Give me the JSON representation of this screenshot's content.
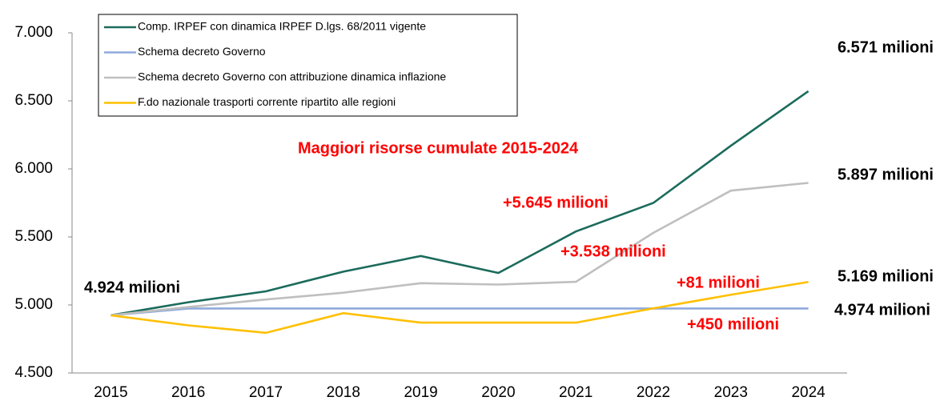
{
  "chart_data": {
    "type": "line",
    "categories": [
      "2015",
      "2016",
      "2017",
      "2018",
      "2019",
      "2020",
      "2021",
      "2022",
      "2023",
      "2024"
    ],
    "series": [
      {
        "name": "Comp. IRPEF con dinamica IRPEF D.lgs. 68/2011 vigente",
        "color": "#1b6b5c",
        "values": [
          4924,
          5020,
          5100,
          5245,
          5360,
          5235,
          5540,
          5750,
          6170,
          6571
        ]
      },
      {
        "name": "Schema decreto Governo",
        "color": "#8faadc",
        "values": [
          4924,
          4974,
          4974,
          4974,
          4974,
          4974,
          4974,
          4974,
          4974,
          4974
        ]
      },
      {
        "name": "Schema decreto Governo con attribuzione dinamica inflazione",
        "color": "#bfbfbf",
        "values": [
          4924,
          4985,
          5040,
          5090,
          5160,
          5150,
          5170,
          5530,
          5840,
          5897
        ]
      },
      {
        "name": "F.do nazionale trasporti corrente ripartito alle regioni",
        "color": "#ffc000",
        "values": [
          4924,
          4850,
          4795,
          4940,
          4870,
          4870,
          4870,
          4975,
          5075,
          5169
        ]
      }
    ],
    "ylim": [
      4500,
      7000
    ],
    "yticks": [
      {
        "value": 4500,
        "label": "4.500"
      },
      {
        "value": 5000,
        "label": "5.000"
      },
      {
        "value": 5500,
        "label": "5.500"
      },
      {
        "value": 6000,
        "label": "6.000"
      },
      {
        "value": 6500,
        "label": "6.500"
      },
      {
        "value": 7000,
        "label": "7.000"
      }
    ],
    "legend": "top-left",
    "annotations": [
      "6.571 milioni",
      "5.897 milioni",
      "5.169 milioni",
      "4.974 milioni",
      "4.924 milioni",
      "Maggiori risorse cumulate 2015-2024",
      "+5.645 milioni",
      "+3.538 milioni",
      "+81 milioni",
      "+450 milioni"
    ],
    "annotation_colors": [
      "#000000",
      "#000000",
      "#000000",
      "#000000",
      "#000000",
      "#ff0000",
      "#ff0000",
      "#ff0000",
      "#ff0000",
      "#ff0000"
    ]
  }
}
